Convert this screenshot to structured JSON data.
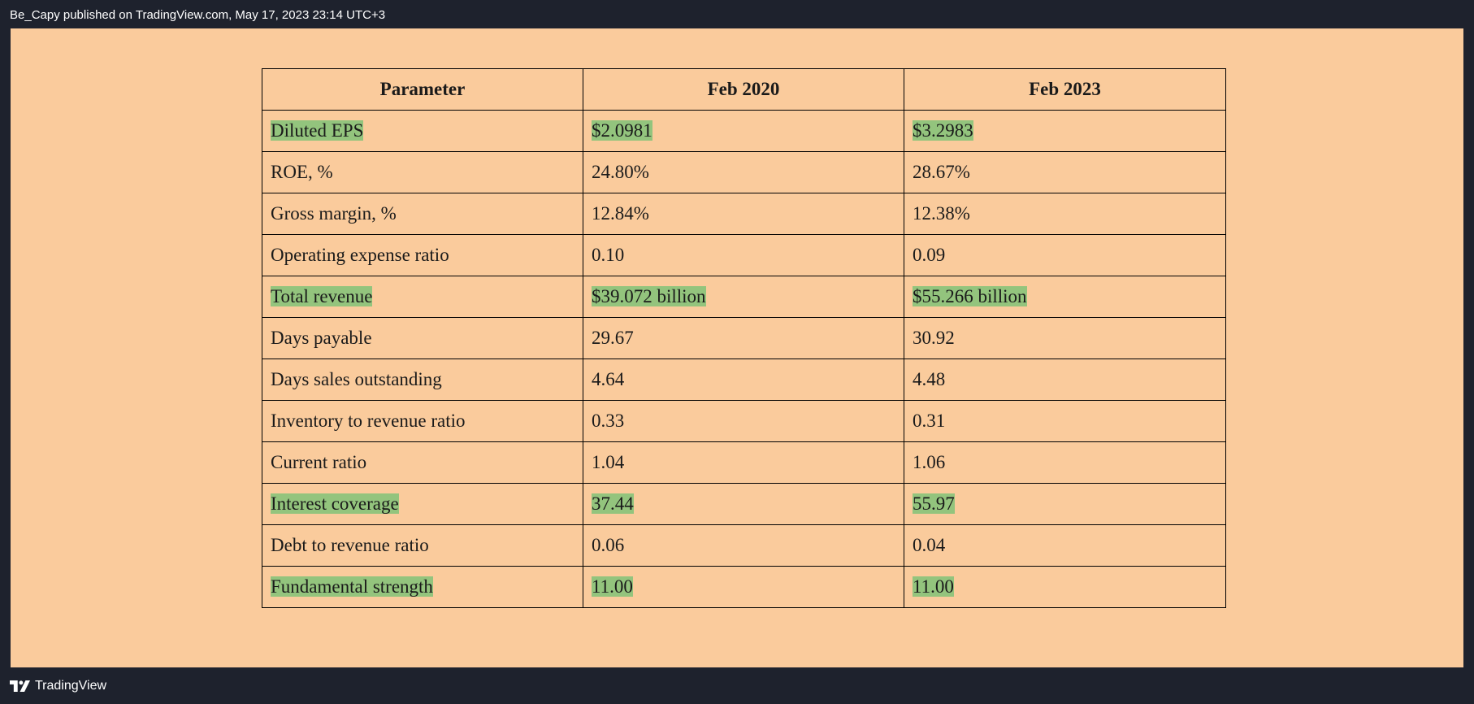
{
  "header": {
    "publish_info": "Be_Capy published on TradingView.com, May 17, 2023 23:14 UTC+3"
  },
  "table": {
    "columns": [
      "Parameter",
      "Feb 2020",
      "Feb 2023"
    ],
    "rows": [
      {
        "cells": [
          "Diluted EPS",
          "$2.0981",
          "$3.2983"
        ],
        "highlighted": true
      },
      {
        "cells": [
          "ROE, %",
          "24.80%",
          "28.67%"
        ],
        "highlighted": false
      },
      {
        "cells": [
          "Gross margin, %",
          "12.84%",
          "12.38%"
        ],
        "highlighted": false
      },
      {
        "cells": [
          "Operating expense ratio",
          "0.10",
          "0.09"
        ],
        "highlighted": false
      },
      {
        "cells": [
          "Total revenue",
          "$39.072 billion",
          "$55.266 billion"
        ],
        "highlighted": true
      },
      {
        "cells": [
          "Days payable",
          "29.67",
          "30.92"
        ],
        "highlighted": false
      },
      {
        "cells": [
          "Days sales outstanding",
          "4.64",
          "4.48"
        ],
        "highlighted": false
      },
      {
        "cells": [
          "Inventory to revenue ratio",
          "0.33",
          "0.31"
        ],
        "highlighted": false
      },
      {
        "cells": [
          "Current ratio",
          "1.04",
          "1.06"
        ],
        "highlighted": false
      },
      {
        "cells": [
          "Interest coverage",
          "37.44",
          "55.97"
        ],
        "highlighted": true
      },
      {
        "cells": [
          "Debt to revenue ratio",
          "0.06",
          "0.04"
        ],
        "highlighted": false
      },
      {
        "cells": [
          "Fundamental strength",
          "11.00",
          "11.00"
        ],
        "highlighted": true
      }
    ]
  },
  "footer": {
    "brand_name": "TradingView",
    "logo_icon": "tradingview-logo-icon"
  },
  "colors": {
    "background": "#1e222d",
    "canvas": "#facb9c",
    "highlight": "#93c47d"
  }
}
